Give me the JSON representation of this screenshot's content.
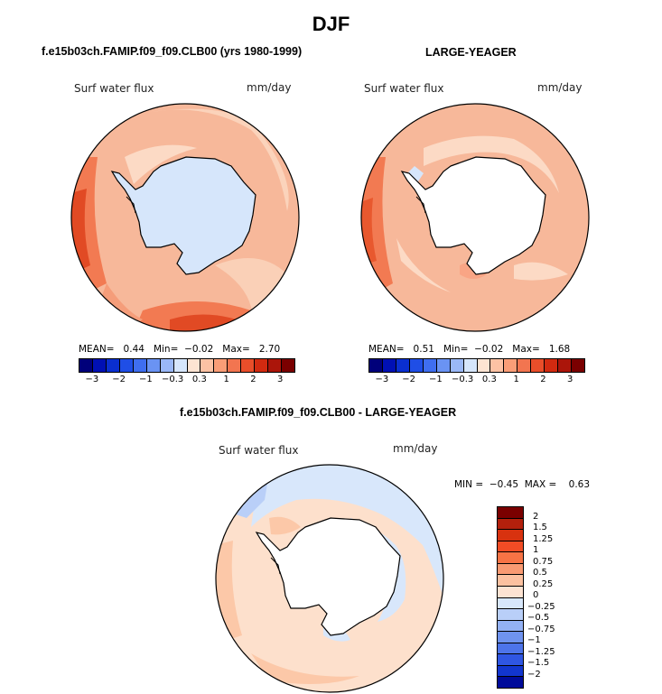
{
  "title": "DJF",
  "panels": [
    {
      "subtitle": "f.e15b03ch.FAMIP.f09_f09.CLB00 (yrs 1980-1999)",
      "field": "Surf water flux",
      "units": "mm/day",
      "stats": {
        "mean_label": "MEAN=",
        "mean": "0.44",
        "min_label": "Min=",
        "min": "−0.02",
        "max_label": "Max=",
        "max": "2.70"
      }
    },
    {
      "subtitle": "LARGE-YEAGER",
      "field": "Surf water flux",
      "units": "mm/day",
      "stats": {
        "mean_label": "MEAN=",
        "mean": "0.51",
        "min_label": "Min=",
        "min": "−0.02",
        "max_label": "Max=",
        "max": "1.68"
      }
    },
    {
      "subtitle": "f.e15b03ch.FAMIP.f09_f09.CLB00 - LARGE-YEAGER",
      "field": "Surf water flux",
      "units": "mm/day",
      "stats": {
        "min_label": "MIN =",
        "min": "−0.45",
        "max_label": "MAX =",
        "max": "0.63"
      }
    }
  ],
  "colorbar_top": {
    "colors": [
      "#00007a",
      "#0010b4",
      "#0a2fd0",
      "#1f4ee6",
      "#3f6ef0",
      "#6a93f3",
      "#9ab8f7",
      "#d6e6fb",
      "#fde4d2",
      "#fcc2a4",
      "#f99d77",
      "#f27550",
      "#e94e2a",
      "#d22a10",
      "#ab150a",
      "#7a0000"
    ],
    "ticks": [
      "−3",
      "−2",
      "−1",
      "−0.3",
      "0.3",
      "1",
      "2",
      "3"
    ]
  },
  "colorbar_diff": {
    "colors": [
      "#7a0000",
      "#b3200c",
      "#d8320f",
      "#f24c25",
      "#f77345",
      "#f99a72",
      "#fcc1a0",
      "#fde3d2",
      "#d8e7fb",
      "#b9cff8",
      "#93b1f4",
      "#6f93ef",
      "#4d74ea",
      "#2f56e3",
      "#1236cf",
      "#000b9a"
    ],
    "ticks": [
      "2",
      "1.5",
      "1.25",
      "1",
      "0.75",
      "0.5",
      "0.25",
      "0",
      "−0.25",
      "−0.5",
      "−0.75",
      "−1",
      "−1.25",
      "−1.5",
      "−2"
    ]
  }
}
